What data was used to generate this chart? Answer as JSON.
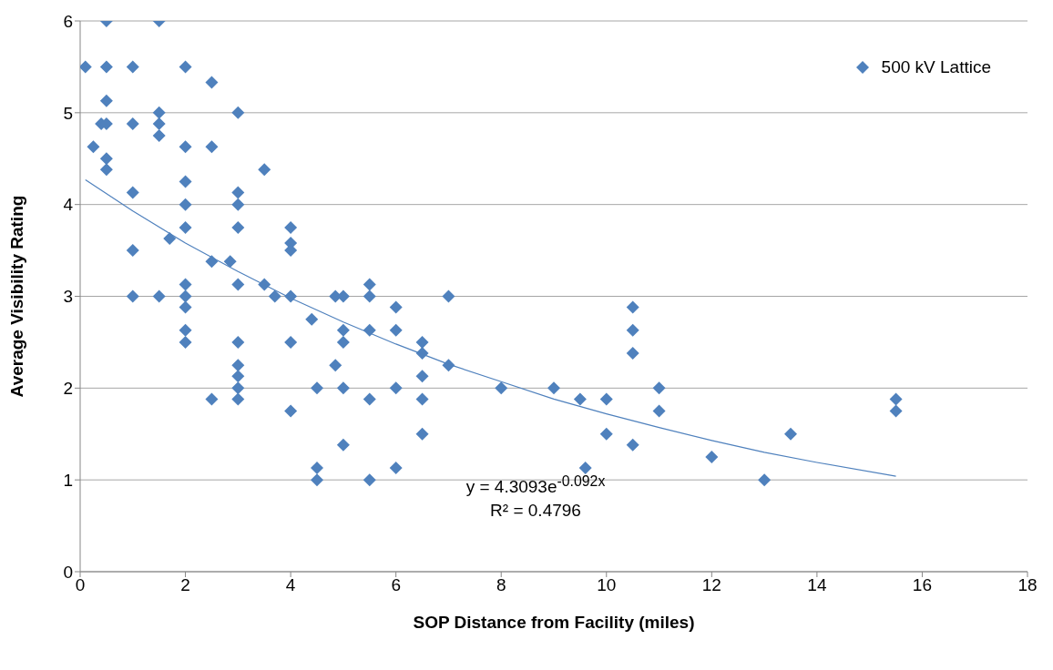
{
  "chart_data": {
    "type": "scatter",
    "xlabel": "SOP Distance from Facility (miles)",
    "ylabel": "Average Visibility Rating",
    "xlim": [
      0,
      18
    ],
    "xticks": [
      0,
      2,
      4,
      6,
      8,
      10,
      12,
      14,
      16,
      18
    ],
    "ylim": [
      0,
      6
    ],
    "yticks": [
      0,
      1,
      2,
      3,
      4,
      5,
      6
    ],
    "grid": "y",
    "legend": "top right",
    "marker": "diamond",
    "annotations": [
      "y = 4.3093e$^{-0.092x}$",
      "R² = 0.4796"
    ],
    "series": [
      {
        "name": "500 kV Lattice",
        "color": "#4f81bd",
        "x": [
          0.1,
          0.25,
          0.4,
          0.5,
          0.5,
          0.5,
          0.5,
          0.5,
          0.5,
          1,
          1,
          1,
          1,
          1,
          1.5,
          1.5,
          1.5,
          1.5,
          1.5,
          1.7,
          2,
          2,
          2,
          2,
          2,
          2,
          2,
          2,
          2,
          2,
          2.5,
          2.5,
          2.5,
          2.5,
          2.85,
          3,
          3,
          3,
          3,
          3,
          3,
          3,
          3,
          3,
          3,
          3.5,
          3.5,
          3.7,
          4,
          4,
          4,
          4,
          4,
          4,
          4.4,
          4.5,
          4.5,
          4.5,
          4.85,
          4.85,
          5,
          5,
          5,
          5,
          5,
          5.5,
          5.5,
          5.5,
          5.5,
          5.5,
          6,
          6,
          6,
          6,
          6.5,
          6.5,
          6.5,
          6.5,
          6.5,
          7,
          7,
          8,
          9,
          9.5,
          9.6,
          10,
          10,
          10.5,
          10.5,
          10.5,
          10.5,
          11,
          11,
          12,
          13,
          13.5,
          15.5,
          15.5
        ],
        "values": [
          5.5,
          4.63,
          4.88,
          6,
          5.5,
          5.13,
          4.88,
          4.5,
          4.38,
          5.5,
          4.88,
          4.13,
          3.5,
          3,
          6,
          5,
          4.88,
          4.75,
          3,
          3.63,
          5.5,
          4.63,
          4.25,
          4,
          3.75,
          3.13,
          3,
          2.88,
          2.63,
          2.5,
          5.33,
          4.63,
          3.38,
          1.88,
          3.38,
          5,
          4.13,
          4,
          3.75,
          3.13,
          2.5,
          2.25,
          2.13,
          2,
          1.88,
          4.38,
          3.13,
          3,
          3.75,
          3.58,
          3.5,
          3,
          2.5,
          1.75,
          2.75,
          2,
          1.13,
          1,
          3,
          2.25,
          3,
          2.63,
          2.5,
          2,
          1.38,
          3.13,
          3,
          2.63,
          1.88,
          1,
          2.88,
          2.63,
          2,
          1.13,
          2.5,
          2.38,
          2.13,
          1.88,
          1.5,
          3,
          2.25,
          2,
          2,
          1.88,
          1.13,
          1.88,
          1.5,
          2.88,
          2.63,
          2.38,
          1.38,
          2,
          1.75,
          1.25,
          1,
          1.5,
          1.88,
          1.75
        ]
      },
      {
        "type": "line",
        "color": "#4f81bd",
        "line_style": "solid",
        "marker": "none",
        "x": [
          0.1,
          1,
          2,
          3,
          4,
          5,
          6,
          7,
          8,
          9,
          10,
          11,
          12,
          13,
          14,
          15.5
        ],
        "values": [
          4.27,
          3.93,
          3.58,
          3.27,
          2.98,
          2.72,
          2.48,
          2.26,
          2.07,
          1.88,
          1.72,
          1.57,
          1.43,
          1.3,
          1.19,
          1.04
        ]
      }
    ]
  }
}
